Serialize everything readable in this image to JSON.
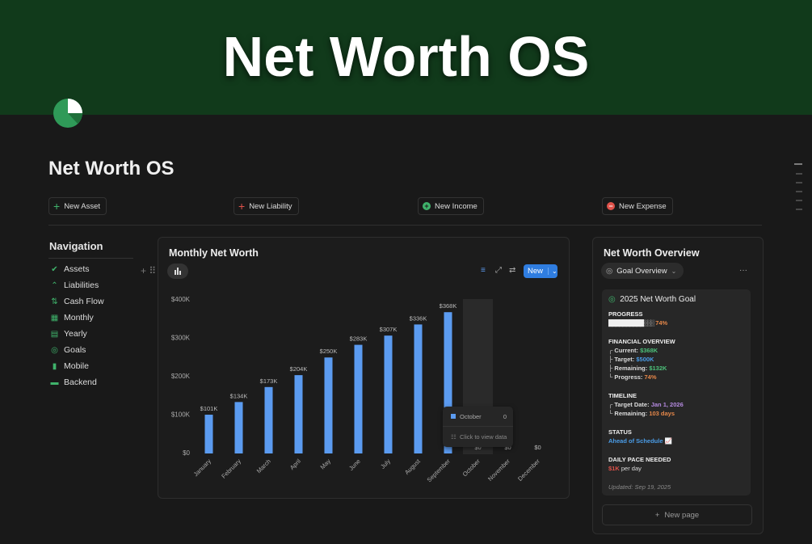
{
  "banner": {
    "title": "Net Worth OS"
  },
  "page": {
    "title": "Net Worth OS"
  },
  "buttons": [
    "New Asset",
    "New Liability",
    "New Income",
    "New Expense"
  ],
  "navigation": {
    "title": "Navigation",
    "items": [
      "Assets",
      "Liabilities",
      "Cash Flow",
      "Monthly",
      "Yearly",
      "Goals",
      "Mobile",
      "Backend"
    ]
  },
  "chart_card": {
    "title": "Monthly Net Worth",
    "new_button": "New",
    "tooltip": {
      "label": "October",
      "value": "0",
      "hint": "Click to view data"
    }
  },
  "chart_data": {
    "type": "bar",
    "categories": [
      "January",
      "February",
      "March",
      "April",
      "May",
      "June",
      "July",
      "August",
      "September",
      "October",
      "November",
      "December"
    ],
    "values": [
      101000,
      134000,
      173000,
      204000,
      250000,
      283000,
      307000,
      336000,
      368000,
      0,
      0,
      0
    ],
    "value_labels": [
      "$101K",
      "$134K",
      "$173K",
      "$204K",
      "$250K",
      "$283K",
      "$307K",
      "$336K",
      "$368K",
      "$0",
      "$0",
      "$0"
    ],
    "color": "#5b9bf0",
    "ylim": [
      0,
      400000
    ],
    "yticks": [
      {
        "value": 0,
        "label": "$0"
      },
      {
        "value": 100000,
        "label": "$100K"
      },
      {
        "value": 200000,
        "label": "$200K"
      },
      {
        "value": 300000,
        "label": "$300K"
      },
      {
        "value": 400000,
        "label": "$400K"
      }
    ],
    "grid": false
  },
  "overview": {
    "title": "Net Worth Overview",
    "view": "Goal Overview",
    "more": "···",
    "goal_title": "2025 Net Worth Goal",
    "progress": {
      "heading": "PROGRESS",
      "bar": "██████████░░░",
      "percent": "74%"
    },
    "financial": {
      "heading": "FINANCIAL OVERVIEW",
      "rows": [
        {
          "label": "┌ Current:",
          "value": "$368K"
        },
        {
          "label": "├ Target:",
          "value": "$500K"
        },
        {
          "label": "├ Remaining:",
          "value": "$132K"
        },
        {
          "label": "└ Progress:",
          "value": "74%"
        }
      ]
    },
    "timeline": {
      "heading": "TIMELINE",
      "rows": [
        {
          "label": "┌ Target Date:",
          "value": "Jan 1, 2026"
        },
        {
          "label": "└ Remaining:",
          "value": "103 days"
        }
      ]
    },
    "status": {
      "heading": "STATUS",
      "value": "Ahead of Schedule 📈"
    },
    "pace": {
      "heading": "DAILY PACE NEEDED",
      "value": "$1K",
      "suffix": "per day"
    },
    "updated": "Updated: Sep 19, 2025",
    "new_page": "New page"
  }
}
